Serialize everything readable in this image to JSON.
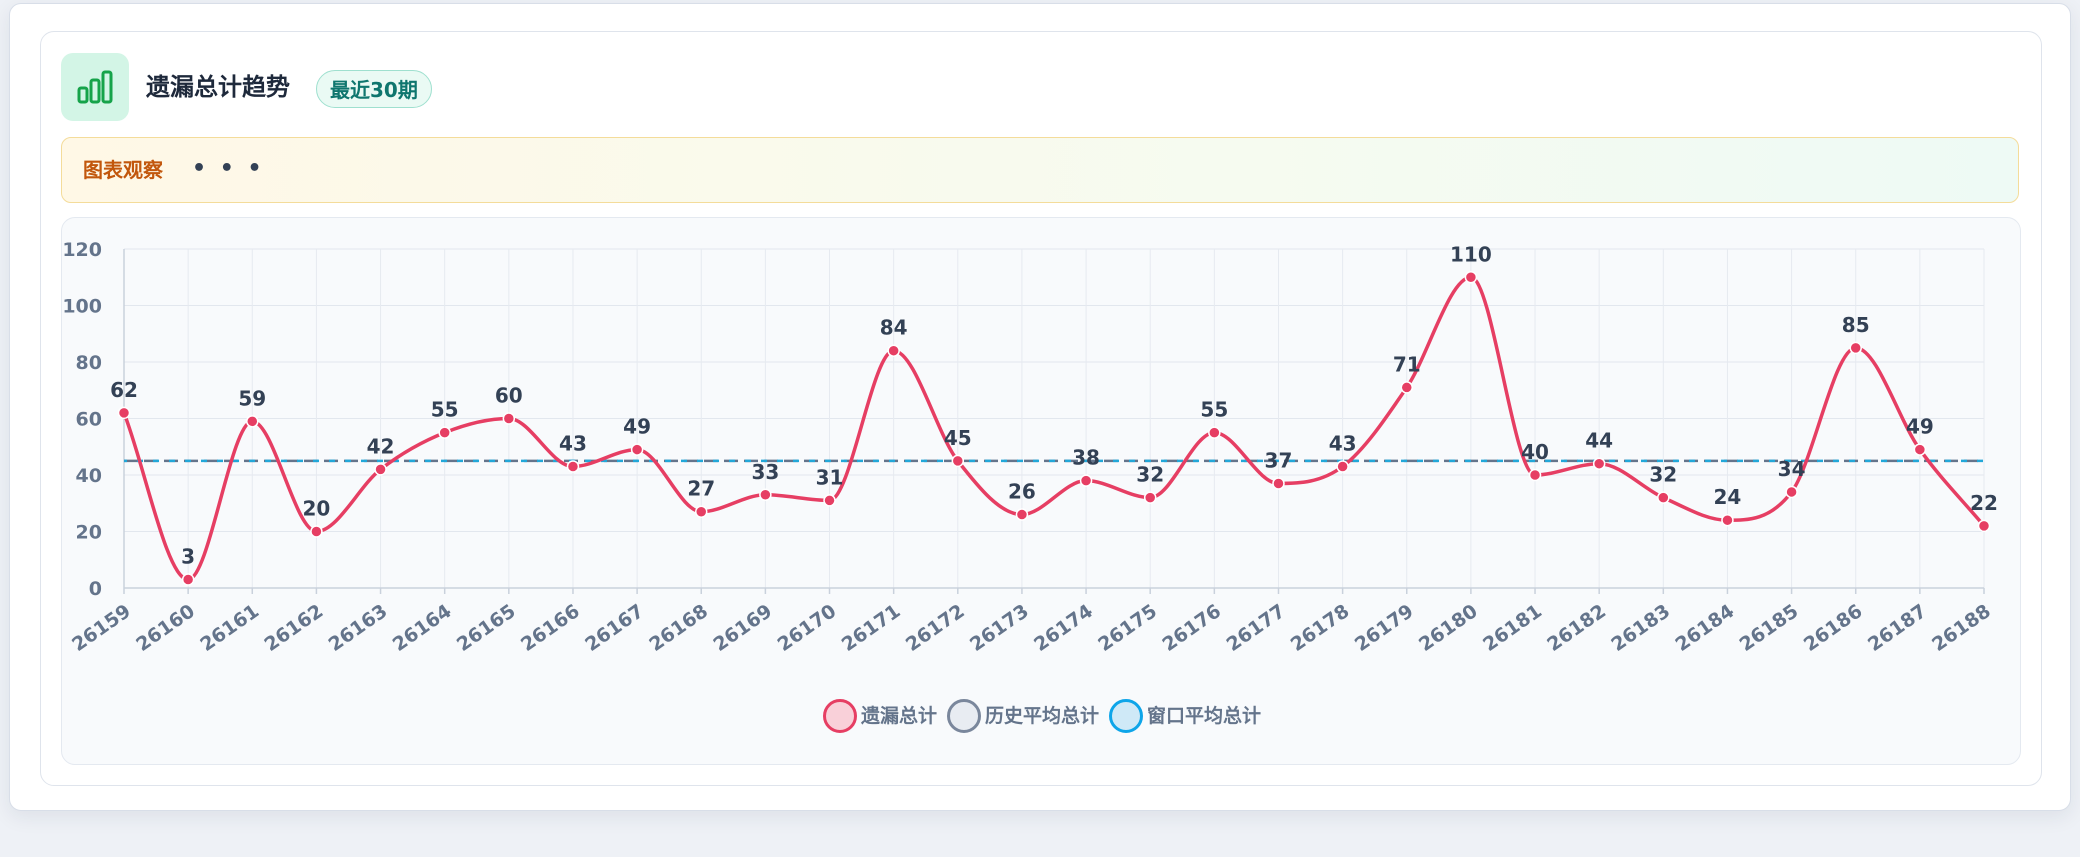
{
  "header": {
    "title": "遗漏总计趋势",
    "badge": "最近30期"
  },
  "note": {
    "label": "图表观察",
    "text": "• • •"
  },
  "legend": [
    {
      "label": "遗漏总计",
      "fill": "#f9d0d9",
      "stroke": "#e63e63"
    },
    {
      "label": "历史平均总计",
      "fill": "#e8ecf2",
      "stroke": "#7a879c"
    },
    {
      "label": "窗口平均总计",
      "fill": "#cfe9f7",
      "stroke": "#0ea5e9"
    }
  ],
  "colors": {
    "line": "#e63e63",
    "hist_avg": "#64748b",
    "win_avg": "#22a7d8",
    "icon": "#16a34a"
  },
  "icon": "bar-chart-icon",
  "chart_data": {
    "type": "line",
    "x": [
      "26159",
      "26160",
      "26161",
      "26162",
      "26163",
      "26164",
      "26165",
      "26166",
      "26167",
      "26168",
      "26169",
      "26170",
      "26171",
      "26172",
      "26173",
      "26174",
      "26175",
      "26176",
      "26177",
      "26178",
      "26179",
      "26180",
      "26181",
      "26182",
      "26183",
      "26184",
      "26185",
      "26186",
      "26187",
      "26188"
    ],
    "series": [
      {
        "name": "遗漏总计",
        "values": [
          62,
          3,
          59,
          20,
          42,
          55,
          60,
          43,
          49,
          27,
          33,
          31,
          84,
          45,
          26,
          38,
          32,
          55,
          37,
          43,
          71,
          110,
          40,
          44,
          32,
          24,
          34,
          85,
          49,
          22
        ]
      },
      {
        "name": "历史平均总计",
        "values": [
          45,
          45,
          45,
          45,
          45,
          45,
          45,
          45,
          45,
          45,
          45,
          45,
          45,
          45,
          45,
          45,
          45,
          45,
          45,
          45,
          45,
          45,
          45,
          45,
          45,
          45,
          45,
          45,
          45,
          45
        ]
      },
      {
        "name": "窗口平均总计",
        "values": [
          45,
          45,
          45,
          45,
          45,
          45,
          45,
          45,
          45,
          45,
          45,
          45,
          45,
          45,
          45,
          45,
          45,
          45,
          45,
          45,
          45,
          45,
          45,
          45,
          45,
          45,
          45,
          45,
          45,
          45
        ]
      }
    ],
    "yticks": [
      0,
      20,
      40,
      60,
      80,
      100,
      120
    ],
    "ylim": [
      0,
      120
    ],
    "grid": true,
    "legend_position": "bottom"
  }
}
